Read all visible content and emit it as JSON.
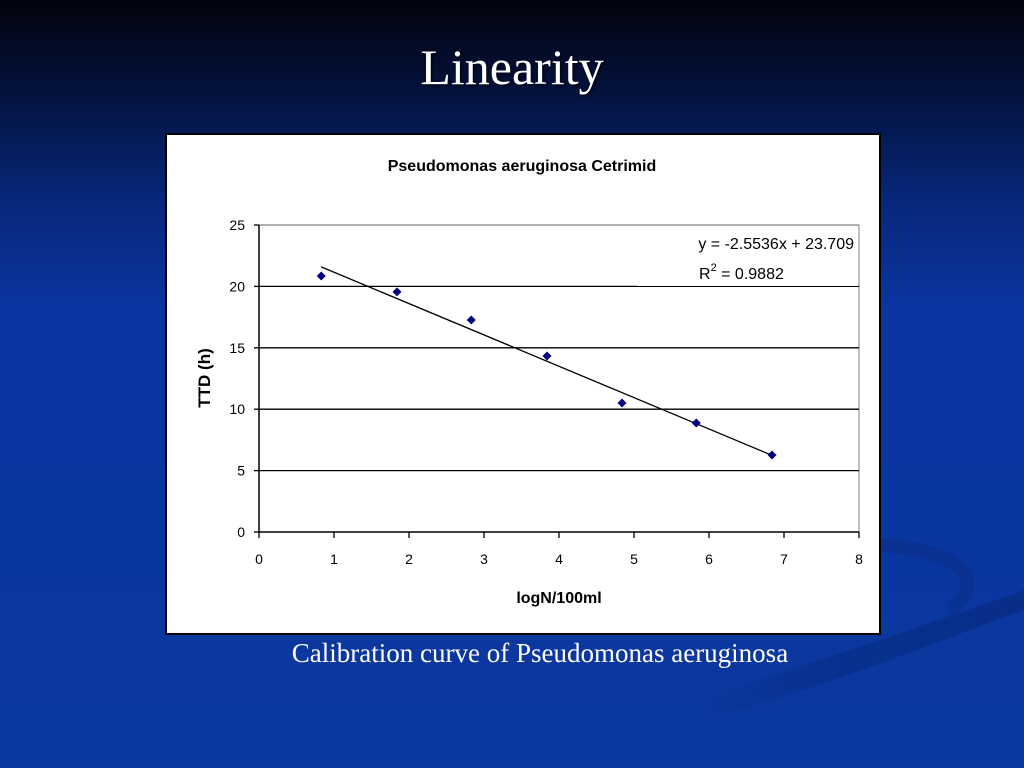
{
  "slide": {
    "title": "Linearity",
    "caption": "Calibration curve of Pseudomonas aeruginosa"
  },
  "colors": {
    "background_top": "#02030c",
    "background_bottom": "#0b389f",
    "marker": "#000080",
    "trendline": "#000000",
    "plot_background": "#ffffff",
    "text": "#ffffff"
  },
  "chart_data": {
    "type": "scatter",
    "title": "Pseudomonas aeruginosa  Cetrimid",
    "xlabel": "logN/100ml",
    "ylabel": "TTD (h)",
    "xlim": [
      0,
      8
    ],
    "ylim": [
      0,
      25
    ],
    "x_ticks": [
      0,
      1,
      2,
      3,
      4,
      5,
      6,
      7,
      8
    ],
    "y_ticks": [
      0,
      5,
      10,
      15,
      20,
      25
    ],
    "grid": {
      "horizontal": true,
      "vertical": false
    },
    "legend": null,
    "marker": "diamond",
    "series": [
      {
        "name": "TTD",
        "x": [
          0.83,
          1.84,
          2.83,
          3.84,
          4.84,
          5.83,
          6.84
        ],
        "y": [
          20.85,
          19.55,
          17.26,
          14.33,
          10.5,
          8.88,
          6.27
        ]
      }
    ],
    "trendline": {
      "type": "linear",
      "slope": -2.5536,
      "intercept": 23.709,
      "r_squared": 0.9882,
      "x_range": [
        0.83,
        6.84
      ],
      "equation_label": "y = -2.5536x + 23.709",
      "r2_label_prefix": "R",
      "r2_label_sup": "2",
      "r2_label_value": " = 0.9882"
    }
  }
}
